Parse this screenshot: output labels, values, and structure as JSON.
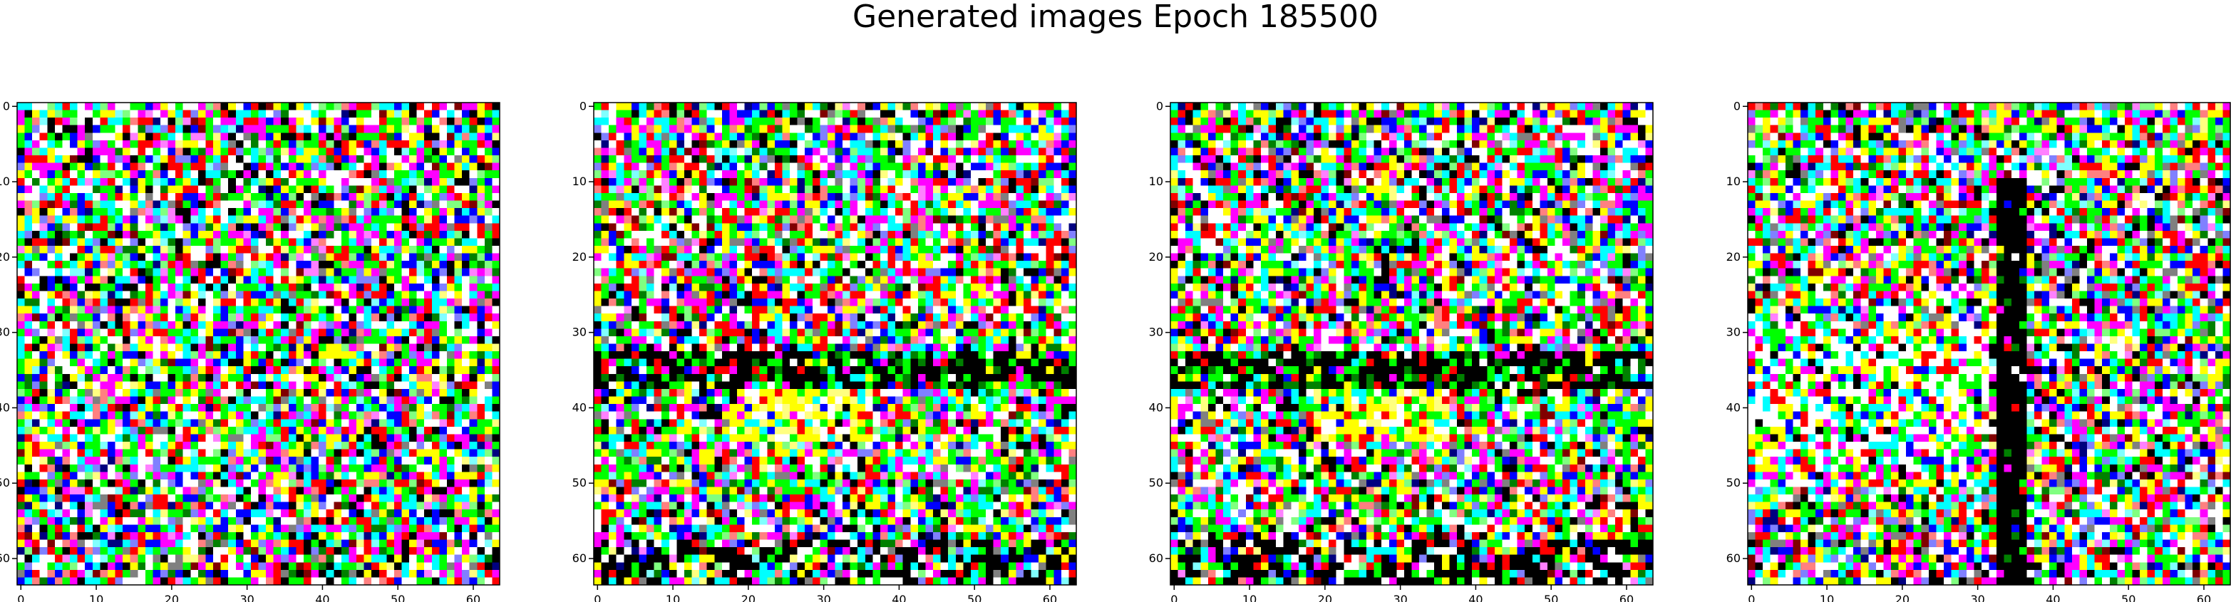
{
  "figure": {
    "title": "Generated images Epoch 185500"
  },
  "chart_data": [
    {
      "type": "heatmap",
      "title": "",
      "xlabel": "",
      "ylabel": "",
      "image_shape": [
        64,
        64,
        3
      ],
      "xlim": [
        -0.5,
        63.5
      ],
      "ylim": [
        63.5,
        -0.5
      ],
      "x_ticks": [
        0,
        10,
        20,
        30,
        40,
        50,
        60
      ],
      "y_ticks": [
        0,
        10,
        20,
        30,
        40,
        50,
        60
      ],
      "content": "random high-saturation color noise",
      "seed": 11,
      "features": []
    },
    {
      "type": "heatmap",
      "title": "",
      "xlabel": "",
      "ylabel": "",
      "image_shape": [
        64,
        64,
        3
      ],
      "xlim": [
        -0.5,
        63.5
      ],
      "ylim": [
        63.5,
        -0.5
      ],
      "x_ticks": [
        0,
        10,
        20,
        30,
        40,
        50,
        60
      ],
      "y_ticks": [
        0,
        10,
        20,
        30,
        40,
        50,
        60
      ],
      "content": "color noise with dark horizontal band and yellow patch",
      "seed": 23,
      "features": [
        "dark-band-rows-33-37",
        "yellow-patch-rows-38-44",
        "dark-bottom-rows-58-63"
      ]
    },
    {
      "type": "heatmap",
      "title": "",
      "xlabel": "",
      "ylabel": "",
      "image_shape": [
        64,
        64,
        3
      ],
      "xlim": [
        -0.5,
        63.5
      ],
      "ylim": [
        63.5,
        -0.5
      ],
      "x_ticks": [
        0,
        10,
        20,
        30,
        40,
        50,
        60
      ],
      "y_ticks": [
        0,
        10,
        20,
        30,
        40,
        50,
        60
      ],
      "content": "color noise with dark horizontal band and yellow patch",
      "seed": 37,
      "features": [
        "dark-band-rows-33-37",
        "yellow-patch-rows-38-44",
        "dark-bottom-rows-58-63"
      ]
    },
    {
      "type": "heatmap",
      "title": "",
      "xlabel": "",
      "ylabel": "",
      "image_shape": [
        64,
        64,
        3
      ],
      "xlim": [
        -0.5,
        63.5
      ],
      "ylim": [
        63.5,
        -0.5
      ],
      "x_ticks": [
        0,
        10,
        20,
        30,
        40,
        50,
        60
      ],
      "y_ticks": [
        0,
        10,
        20,
        30,
        40,
        50,
        60
      ],
      "content": "color noise with dark vertical band and bright left region",
      "seed": 53,
      "features": [
        "dark-vertical-band-cols-33-36",
        "bright-left-region"
      ]
    }
  ]
}
